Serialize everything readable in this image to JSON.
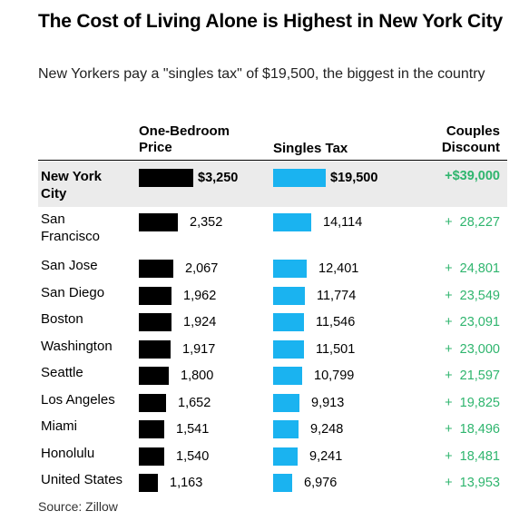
{
  "title": "The Cost of Living Alone is Highest in New York City",
  "subtitle": "New Yorkers pay a \"singles tax\" of $19,500, the biggest in the country",
  "headers": {
    "price": [
      "One-Bedroom",
      "Price"
    ],
    "tax": "Singles Tax",
    "discount": [
      "Couples",
      "Discount"
    ]
  },
  "source": "Source: Zillow",
  "colors": {
    "price_bar": "#000000",
    "tax_bar": "#1ab3f0",
    "discount_text": "#2fb56e",
    "highlight_row": "#ebebeb"
  },
  "chart_data": {
    "type": "table",
    "columns": [
      "",
      "One-Bedroom Price",
      "Singles Tax",
      "Couples Discount"
    ],
    "rows": [
      {
        "city": [
          "New York",
          "City"
        ],
        "price": 3250,
        "price_label": "$3,250",
        "tax": 19500,
        "tax_label": "$19,500",
        "discount_label": "+$39,000",
        "highlight": true
      },
      {
        "city": [
          "San",
          "Francisco"
        ],
        "price": 2352,
        "price_label": "2,352",
        "tax": 14114,
        "tax_label": "14,114",
        "discount_label": "+  28,227"
      },
      {
        "city": [
          "San Jose"
        ],
        "price": 2067,
        "price_label": "2,067",
        "tax": 12401,
        "tax_label": "12,401",
        "discount_label": "+  24,801"
      },
      {
        "city": [
          "San Diego"
        ],
        "price": 1962,
        "price_label": "1,962",
        "tax": 11774,
        "tax_label": "11,774",
        "discount_label": "+  23,549"
      },
      {
        "city": [
          "Boston"
        ],
        "price": 1924,
        "price_label": "1,924",
        "tax": 11546,
        "tax_label": "11,546",
        "discount_label": "+  23,091"
      },
      {
        "city": [
          "Washington"
        ],
        "price": 1917,
        "price_label": "1,917",
        "tax": 11501,
        "tax_label": "11,501",
        "discount_label": "+  23,000"
      },
      {
        "city": [
          "Seattle"
        ],
        "price": 1800,
        "price_label": "1,800",
        "tax": 10799,
        "tax_label": "10,799",
        "discount_label": "+  21,597"
      },
      {
        "city": [
          "Los Angeles"
        ],
        "price": 1652,
        "price_label": "1,652",
        "tax": 9913,
        "tax_label": "9,913",
        "discount_label": "+  19,825"
      },
      {
        "city": [
          "Miami"
        ],
        "price": 1541,
        "price_label": "1,541",
        "tax": 9248,
        "tax_label": "9,248",
        "discount_label": "+  18,496"
      },
      {
        "city": [
          "Honolulu"
        ],
        "price": 1540,
        "price_label": "1,540",
        "tax": 9241,
        "tax_label": "9,241",
        "discount_label": "+  18,481"
      },
      {
        "city": [
          "United States"
        ],
        "price": 1163,
        "price_label": "1,163",
        "tax": 6976,
        "tax_label": "6,976",
        "discount_label": "+  13,953"
      }
    ]
  }
}
